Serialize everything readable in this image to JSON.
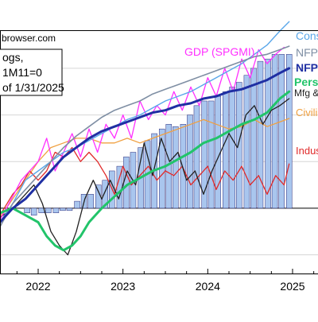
{
  "source_text": "browser.com",
  "note": {
    "line1": "ogs,",
    "line2": "1M11=0",
    "line3": "of 1/31/2025"
  },
  "colors": {
    "background": "#ffffff",
    "bars_fill": "#a9c6ee",
    "bars_stroke": "#2a2a7a",
    "consumption": "#5aa7ea",
    "nfp_ces": "#7f8fa4",
    "nfp": "#1f2fa3",
    "gdp": "#ff30ff",
    "personal_income": "#22c46a",
    "mfg": "#222222",
    "civilian": "#f0a040",
    "industrial": "#e02a2a"
  },
  "chart_data": {
    "type": "line",
    "title": "",
    "xlabel": "",
    "ylabel": "",
    "x_tick_labels": [
      "2022",
      "2023",
      "2024",
      "2025"
    ],
    "x_range": [
      2021.55,
      2025.3
    ],
    "y_range": [
      -2.8,
      7.6
    ],
    "grid": "horizontal",
    "legend": "labels at right end of lines",
    "series": [
      {
        "key": "gdp_bars",
        "type": "bar",
        "name": "",
        "x": [
          2021.87,
          2021.95,
          2022.04,
          2022.12,
          2022.21,
          2022.29,
          2022.37,
          2022.46,
          2022.54,
          2022.62,
          2022.71,
          2022.79,
          2022.87,
          2022.96,
          2023.04,
          2023.12,
          2023.21,
          2023.29,
          2023.37,
          2023.46,
          2023.54,
          2023.62,
          2023.71,
          2023.79,
          2023.87,
          2023.96,
          2024.04,
          2024.12,
          2024.21,
          2024.29,
          2024.37,
          2024.46,
          2024.54,
          2024.62,
          2024.71,
          2024.79,
          2024.87,
          2024.96
        ],
        "values": [
          -0.2,
          -0.3,
          -0.2,
          -0.2,
          -0.2,
          -0.1,
          -0.1,
          0.3,
          0.6,
          0.6,
          1.0,
          1.2,
          1.6,
          1.8,
          2.2,
          2.4,
          2.6,
          2.9,
          3.2,
          3.4,
          3.6,
          3.5,
          3.6,
          4.0,
          4.4,
          4.6,
          4.6,
          4.8,
          5.0,
          5.2,
          5.4,
          5.7,
          6.0,
          6.3,
          6.4,
          6.6,
          6.6,
          6.6
        ]
      },
      {
        "key": "consumption",
        "name": "Cons",
        "x": [
          2021.55,
          2021.7,
          2021.85,
          2022.0,
          2022.15,
          2022.3,
          2022.45,
          2022.6,
          2022.75,
          2022.9,
          2023.05,
          2023.2,
          2023.35,
          2023.5,
          2023.65,
          2023.8,
          2023.95,
          2024.1,
          2024.25,
          2024.4,
          2024.55,
          2024.7,
          2024.85,
          2024.96
        ],
        "values": [
          -0.6,
          0.2,
          1.2,
          1.6,
          2.0,
          2.4,
          2.6,
          2.9,
          3.2,
          3.5,
          3.8,
          4.0,
          4.3,
          4.6,
          4.8,
          5.0,
          5.3,
          5.6,
          5.9,
          6.2,
          6.6,
          7.0,
          7.6,
          8.0
        ]
      },
      {
        "key": "nfp_ces",
        "name": "NFP",
        "x": [
          2021.55,
          2021.7,
          2021.85,
          2022.0,
          2022.15,
          2022.3,
          2022.45,
          2022.6,
          2022.75,
          2022.9,
          2023.05,
          2023.2,
          2023.35,
          2023.5,
          2023.65,
          2023.8,
          2023.95,
          2024.1,
          2024.25,
          2024.4,
          2024.55,
          2024.7,
          2024.85,
          2024.96
        ],
        "values": [
          -0.8,
          0.2,
          0.8,
          1.4,
          2.0,
          2.6,
          3.1,
          3.5,
          3.9,
          4.2,
          4.4,
          4.6,
          4.9,
          5.1,
          5.3,
          5.5,
          5.7,
          5.9,
          6.1,
          6.3,
          6.5,
          6.6,
          6.8,
          6.95
        ]
      },
      {
        "key": "nfp",
        "name": "NFP",
        "x": [
          2021.55,
          2021.7,
          2021.85,
          2022.0,
          2022.15,
          2022.3,
          2022.45,
          2022.6,
          2022.75,
          2022.9,
          2023.05,
          2023.2,
          2023.35,
          2023.5,
          2023.65,
          2023.8,
          2023.95,
          2024.1,
          2024.25,
          2024.4,
          2024.55,
          2024.7,
          2024.85,
          2024.96
        ],
        "values": [
          -0.6,
          0.0,
          0.4,
          1.0,
          1.6,
          2.2,
          2.6,
          3.0,
          3.3,
          3.5,
          3.7,
          3.9,
          4.1,
          4.2,
          4.4,
          4.5,
          4.7,
          4.8,
          5.0,
          5.1,
          5.3,
          5.5,
          5.8,
          6.0
        ]
      },
      {
        "key": "gdp",
        "name": "GDP (SPGMI)",
        "x": [
          2021.55,
          2021.7,
          2021.8,
          2021.9,
          2022.0,
          2022.1,
          2022.2,
          2022.3,
          2022.4,
          2022.5,
          2022.6,
          2022.7,
          2022.8,
          2022.9,
          2023.0,
          2023.1,
          2023.2,
          2023.3,
          2023.4,
          2023.5,
          2023.6,
          2023.7,
          2023.8,
          2023.9,
          2024.0,
          2024.1,
          2024.2,
          2024.3,
          2024.4,
          2024.5,
          2024.6,
          2024.7,
          2024.8,
          2024.9
        ],
        "values": [
          -0.5,
          0.5,
          1.2,
          1.6,
          2.0,
          3.0,
          1.6,
          2.4,
          3.2,
          2.2,
          3.4,
          2.4,
          3.6,
          3.0,
          4.0,
          3.0,
          4.6,
          3.8,
          4.4,
          4.0,
          5.0,
          4.2,
          5.2,
          4.4,
          5.6,
          4.8,
          6.0,
          5.0,
          6.4,
          5.6,
          6.8,
          6.2,
          6.6,
          6.9
        ]
      },
      {
        "key": "personal_income",
        "name": "Pers",
        "x": [
          2021.55,
          2021.7,
          2021.85,
          2022.0,
          2022.1,
          2022.2,
          2022.3,
          2022.4,
          2022.5,
          2022.6,
          2022.75,
          2022.9,
          2023.05,
          2023.2,
          2023.35,
          2023.5,
          2023.65,
          2023.8,
          2023.95,
          2024.1,
          2024.25,
          2024.4,
          2024.55,
          2024.7,
          2024.85,
          2024.96
        ],
        "values": [
          -0.2,
          0.0,
          -0.3,
          -0.6,
          -1.2,
          -1.6,
          -1.8,
          -1.6,
          -1.2,
          -0.6,
          0.0,
          0.5,
          1.0,
          1.3,
          1.6,
          1.8,
          2.1,
          2.4,
          2.8,
          3.0,
          3.3,
          3.6,
          3.8,
          4.1,
          4.7,
          5.0
        ]
      },
      {
        "key": "mfg",
        "name": "Mfg &",
        "x": [
          2021.55,
          2021.7,
          2021.85,
          2021.95,
          2022.05,
          2022.15,
          2022.25,
          2022.35,
          2022.45,
          2022.55,
          2022.65,
          2022.75,
          2022.85,
          2022.95,
          2023.05,
          2023.15,
          2023.25,
          2023.35,
          2023.45,
          2023.55,
          2023.65,
          2023.75,
          2023.85,
          2023.95,
          2024.05,
          2024.15,
          2024.25,
          2024.35,
          2024.45,
          2024.55,
          2024.65,
          2024.75,
          2024.85,
          2024.96
        ],
        "values": [
          -0.4,
          0.0,
          0.6,
          1.0,
          0.2,
          -1.0,
          -1.6,
          -2.0,
          -1.0,
          0.4,
          1.2,
          0.4,
          1.2,
          0.4,
          1.6,
          1.0,
          2.8,
          1.4,
          3.0,
          2.0,
          2.4,
          1.2,
          1.6,
          0.6,
          1.6,
          2.4,
          3.2,
          2.6,
          4.0,
          4.4,
          3.6,
          4.2,
          4.4,
          4.7
        ]
      },
      {
        "key": "civilian",
        "name": "Civili",
        "x": [
          2021.55,
          2021.7,
          2021.85,
          2022.0,
          2022.15,
          2022.3,
          2022.45,
          2022.6,
          2022.75,
          2022.9,
          2023.05,
          2023.2,
          2023.35,
          2023.5,
          2023.65,
          2023.8,
          2023.95,
          2024.1,
          2024.25,
          2024.4,
          2024.55,
          2024.7,
          2024.85,
          2024.96
        ],
        "values": [
          -0.4,
          0.4,
          1.2,
          2.0,
          2.6,
          2.8,
          3.0,
          3.0,
          2.8,
          2.8,
          3.0,
          2.8,
          3.0,
          3.2,
          3.4,
          3.6,
          3.8,
          3.6,
          3.4,
          3.5,
          3.8,
          3.5,
          3.7,
          3.85
        ]
      },
      {
        "key": "industrial",
        "name": "Indus",
        "x": [
          2021.55,
          2021.7,
          2021.8,
          2021.9,
          2022.0,
          2022.1,
          2022.2,
          2022.3,
          2022.4,
          2022.5,
          2022.6,
          2022.7,
          2022.8,
          2022.9,
          2023.0,
          2023.1,
          2023.2,
          2023.3,
          2023.4,
          2023.5,
          2023.6,
          2023.7,
          2023.8,
          2023.9,
          2024.0,
          2024.1,
          2024.2,
          2024.3,
          2024.4,
          2024.5,
          2024.6,
          2024.7,
          2024.8,
          2024.9,
          2024.96
        ],
        "values": [
          -0.3,
          0.6,
          1.0,
          1.6,
          1.2,
          1.6,
          2.4,
          2.2,
          2.6,
          2.0,
          2.4,
          2.0,
          1.4,
          0.6,
          1.8,
          1.0,
          1.4,
          1.8,
          1.2,
          1.6,
          1.4,
          1.8,
          1.0,
          1.4,
          1.8,
          0.8,
          1.6,
          1.2,
          1.8,
          1.0,
          1.4,
          0.6,
          1.4,
          1.0,
          1.9
        ]
      }
    ]
  }
}
